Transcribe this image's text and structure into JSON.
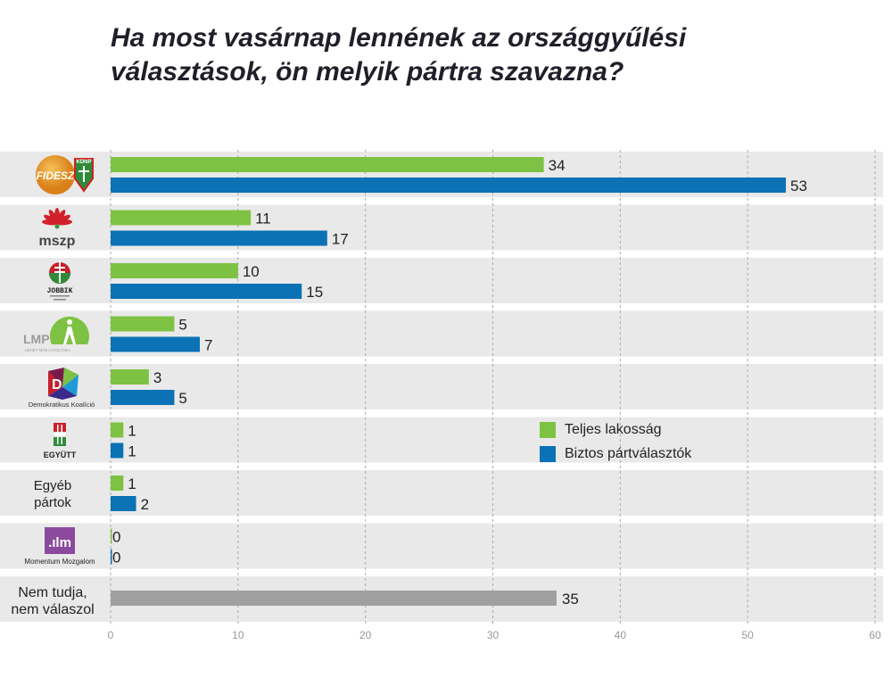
{
  "chart_data": {
    "type": "bar",
    "orientation": "horizontal",
    "title": "Ha most vasárnap lennének az országgyűlési választások, ön melyik pártra szavazna?",
    "categories": [
      "Fidesz-KDNP",
      "MSZP",
      "Jobbik",
      "LMP",
      "Demokratikus Koalíció",
      "Együtt",
      "Egyéb pártok",
      "Momentum Mozgalom",
      "Nem tudja, nem válaszol"
    ],
    "category_labels": {
      "egyeb": [
        "Egyéb",
        "pártok"
      ],
      "nemtudja": [
        "Nem tudja,",
        "nem válaszol"
      ]
    },
    "logo_text": {
      "fidesz": "FIDESZ",
      "kdnp": "KDNP",
      "mszp": "mszp",
      "jobbik": "JOBBIK",
      "lmp": "LMP",
      "lmp_sub": "LEHET MÁS A POLITIKA",
      "dk": "Demokratikus Koalíció",
      "egyutt": "EGYÜTT",
      "momentum": "Momentum Mozgalom",
      "momentum_mark": ".m"
    },
    "series": [
      {
        "name": "Teljes lakosság",
        "color": "#7dc242",
        "values": [
          34,
          11,
          10,
          5,
          3,
          1,
          1,
          0,
          null
        ]
      },
      {
        "name": "Biztos pártválasztók",
        "color": "#0a72b5",
        "values": [
          53,
          17,
          15,
          7,
          5,
          1,
          2,
          0,
          null
        ]
      }
    ],
    "undecided": {
      "value": 35,
      "color": "#a0a0a0"
    },
    "xlim": [
      0,
      60
    ],
    "xticks": [
      0,
      10,
      20,
      30,
      40,
      50,
      60
    ],
    "grid": true,
    "legend_position": "right-center",
    "row_background": "#e9e9e9"
  }
}
